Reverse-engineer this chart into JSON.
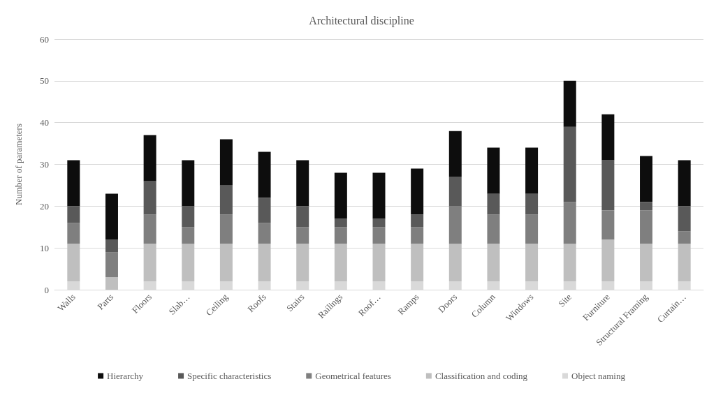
{
  "chart_data": {
    "type": "bar",
    "title": "Architectural discipline",
    "ylabel": "Number of parameters",
    "stacked": true,
    "grid": "y",
    "legend": "bottom",
    "ylim": [
      0,
      60
    ],
    "yticks": [
      0,
      10,
      20,
      30,
      40,
      50,
      60
    ],
    "categories": [
      "Walls",
      "Parts",
      "Floors",
      "Slab…",
      "Ceiling",
      "Roofs",
      "Stairs",
      "Railings",
      "Roof…",
      "Ramps",
      "Doors",
      "Column",
      "Windows",
      "Site",
      "Furniture",
      "Structural Framing",
      "Curtain…"
    ],
    "series": [
      {
        "name": "Object naming",
        "color": "#d9d9d9",
        "values": [
          2,
          0,
          2,
          2,
          2,
          2,
          2,
          2,
          2,
          2,
          2,
          2,
          2,
          2,
          2,
          2,
          2
        ]
      },
      {
        "name": "Classification and coding",
        "color": "#bfbfbf",
        "values": [
          9,
          3,
          9,
          9,
          9,
          9,
          9,
          9,
          9,
          9,
          9,
          9,
          9,
          9,
          10,
          9,
          9
        ]
      },
      {
        "name": "Geometrical features",
        "color": "#7f7f7f",
        "values": [
          5,
          6,
          7,
          4,
          7,
          5,
          4,
          4,
          4,
          4,
          9,
          7,
          7,
          10,
          7,
          8,
          3
        ]
      },
      {
        "name": "Specific characteristics",
        "color": "#595959",
        "values": [
          4,
          3,
          8,
          5,
          7,
          6,
          5,
          2,
          2,
          3,
          7,
          5,
          5,
          18,
          12,
          2,
          6
        ]
      },
      {
        "name": "Hierarchy",
        "color": "#0d0d0d",
        "values": [
          11,
          11,
          11,
          11,
          11,
          11,
          11,
          11,
          11,
          11,
          11,
          11,
          11,
          11,
          11,
          11,
          11
        ]
      }
    ]
  }
}
